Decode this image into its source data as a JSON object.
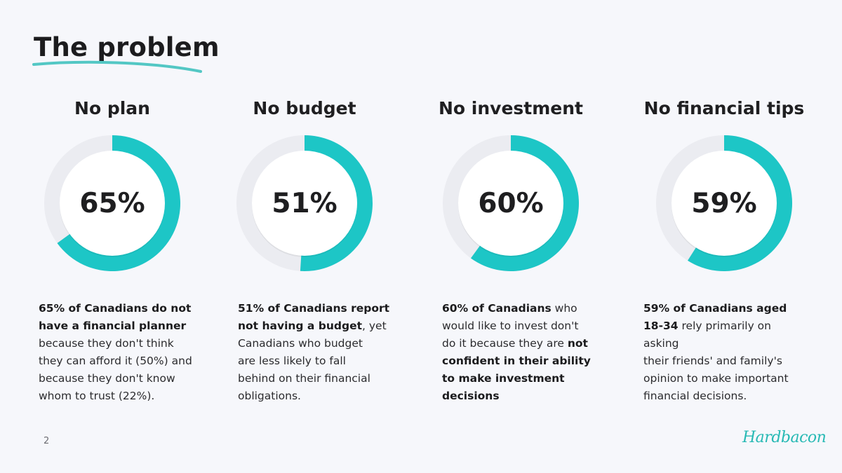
{
  "page": {
    "title": "The problem",
    "page_number": "2",
    "logo_text": "Hardbacon"
  },
  "colors": {
    "accent": "#1dc6c6",
    "ring_track": "#ebecf1",
    "inner_circle": "#ffffff",
    "underline": "#53c7c4"
  },
  "chart_data": [
    {
      "type": "pie",
      "title": "No plan",
      "value": 65,
      "label": "65%",
      "unit": "%"
    },
    {
      "type": "pie",
      "title": "No budget",
      "value": 51,
      "label": "51%",
      "unit": "%"
    },
    {
      "type": "pie",
      "title": "No investment",
      "value": 60,
      "label": "60%",
      "unit": "%"
    },
    {
      "type": "pie",
      "title": "No financial tips",
      "value": 59,
      "label": "59%",
      "unit": "%"
    }
  ],
  "descriptions": [
    {
      "b1": "65% of Canadians do not",
      "b2": "have a financial planner",
      "t1": "because they don't think",
      "t2": "they can afford it (50%) and",
      "t3": "because they don't know",
      "t4": "whom to trust (22%)."
    },
    {
      "b1": "51% of Canadians report",
      "b2": "not having a budget",
      "t1": ", yet",
      "t2": "Canadians who budget",
      "t3": "are less likely to fall",
      "t4": "behind on their financial",
      "t5": "obligations."
    },
    {
      "b1": "60% of Canadians",
      "t1": " who",
      "t2": "would like to invest don't",
      "t3": "do it because they are ",
      "b2": "not",
      "b3": "confident in their ability",
      "b4": "to make investment",
      "b5": "decisions"
    },
    {
      "b1": "59% of Canadians aged",
      "b2": "18-34",
      "t1": " rely primarily on asking",
      "t2": "their friends' and family's",
      "t3": "opinion to make important",
      "t4": "financial decisions."
    }
  ]
}
